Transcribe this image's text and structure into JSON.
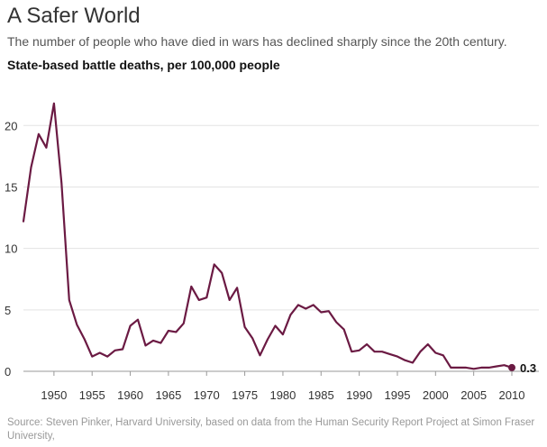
{
  "header": {
    "title": "A Safer World",
    "subtitle": "The number of people who have died in wars has declined sharply since the 20th century.",
    "chart_label": "State-based battle deaths, per 100,000 people"
  },
  "footer": {
    "source": "Source: Steven Pinker, Harvard University, based on data from the Human Security Report Project at Simon Fraser University,"
  },
  "colors": {
    "line": "#6b1a43",
    "grid": "#e3e3e3",
    "axis": "#999999",
    "tick_text": "#333333"
  },
  "chart_data": {
    "type": "line",
    "title": "State-based battle deaths, per 100,000 people",
    "xlabel": "",
    "ylabel": "",
    "xlim": [
      1946,
      2010
    ],
    "ylim": [
      0,
      22
    ],
    "yticks": [
      0,
      5,
      10,
      15,
      20
    ],
    "xticks": [
      1950,
      1955,
      1960,
      1965,
      1970,
      1975,
      1980,
      1985,
      1990,
      1995,
      2000,
      2005,
      2010
    ],
    "grid": true,
    "end_label": "0.3",
    "series": [
      {
        "name": "Battle deaths per 100,000",
        "x": [
          1946,
          1947,
          1948,
          1949,
          1950,
          1951,
          1952,
          1953,
          1954,
          1955,
          1956,
          1957,
          1958,
          1959,
          1960,
          1961,
          1962,
          1963,
          1964,
          1965,
          1966,
          1967,
          1968,
          1969,
          1970,
          1971,
          1972,
          1973,
          1974,
          1975,
          1976,
          1977,
          1978,
          1979,
          1980,
          1981,
          1982,
          1983,
          1984,
          1985,
          1986,
          1987,
          1988,
          1989,
          1990,
          1991,
          1992,
          1993,
          1994,
          1995,
          1996,
          1997,
          1998,
          1999,
          2000,
          2001,
          2002,
          2003,
          2004,
          2005,
          2006,
          2007,
          2008,
          2009,
          2010
        ],
        "values": [
          12.2,
          16.6,
          19.3,
          18.2,
          21.8,
          15.3,
          5.8,
          3.8,
          2.6,
          1.2,
          1.5,
          1.2,
          1.7,
          1.8,
          3.7,
          4.2,
          2.1,
          2.5,
          2.3,
          3.3,
          3.2,
          3.9,
          6.9,
          5.8,
          6.0,
          8.7,
          8.0,
          5.8,
          6.8,
          3.6,
          2.7,
          1.3,
          2.6,
          3.7,
          3.0,
          4.6,
          5.4,
          5.1,
          5.4,
          4.8,
          4.9,
          4.0,
          3.4,
          1.6,
          1.7,
          2.2,
          1.6,
          1.6,
          1.4,
          1.2,
          0.9,
          0.7,
          1.6,
          2.2,
          1.5,
          1.3,
          0.3,
          0.3,
          0.3,
          0.2,
          0.3,
          0.3,
          0.4,
          0.5,
          0.3
        ]
      }
    ]
  }
}
